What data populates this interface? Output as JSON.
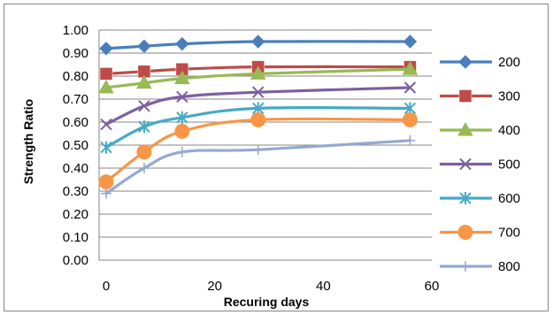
{
  "chart_data": {
    "type": "line",
    "title": "",
    "xlabel": "Recuring days",
    "ylabel": "Strength Ratio",
    "xlim": [
      0,
      60
    ],
    "ylim": [
      0,
      1
    ],
    "xticks": [
      "0",
      "20",
      "40",
      "60"
    ],
    "yticks": [
      "0.00",
      "0.10",
      "0.20",
      "0.30",
      "0.40",
      "0.50",
      "0.60",
      "0.70",
      "0.80",
      "0.90",
      "1.00"
    ],
    "grid": "horizontal",
    "legend": "right",
    "x": [
      0,
      7,
      14,
      28,
      56
    ],
    "series": [
      {
        "name": "200",
        "values": [
          0.92,
          0.93,
          0.94,
          0.95,
          0.95
        ],
        "color": "#4a7ebb",
        "marker": "diamond"
      },
      {
        "name": "300",
        "values": [
          0.81,
          0.82,
          0.83,
          0.84,
          0.84
        ],
        "color": "#be4b48",
        "marker": "square"
      },
      {
        "name": "400",
        "values": [
          0.75,
          0.77,
          0.79,
          0.81,
          0.83
        ],
        "color": "#98b954",
        "marker": "triangle"
      },
      {
        "name": "500",
        "values": [
          0.59,
          0.67,
          0.71,
          0.73,
          0.75
        ],
        "color": "#7d60a0",
        "marker": "x"
      },
      {
        "name": "600",
        "values": [
          0.49,
          0.58,
          0.62,
          0.66,
          0.66
        ],
        "color": "#46aac5",
        "marker": "star"
      },
      {
        "name": "700",
        "values": [
          0.34,
          0.47,
          0.56,
          0.61,
          0.61
        ],
        "color": "#f79646",
        "marker": "circle"
      },
      {
        "name": "800",
        "values": [
          0.29,
          0.4,
          0.47,
          0.48,
          0.52
        ],
        "color": "#93a9d0",
        "marker": "plus"
      }
    ]
  }
}
